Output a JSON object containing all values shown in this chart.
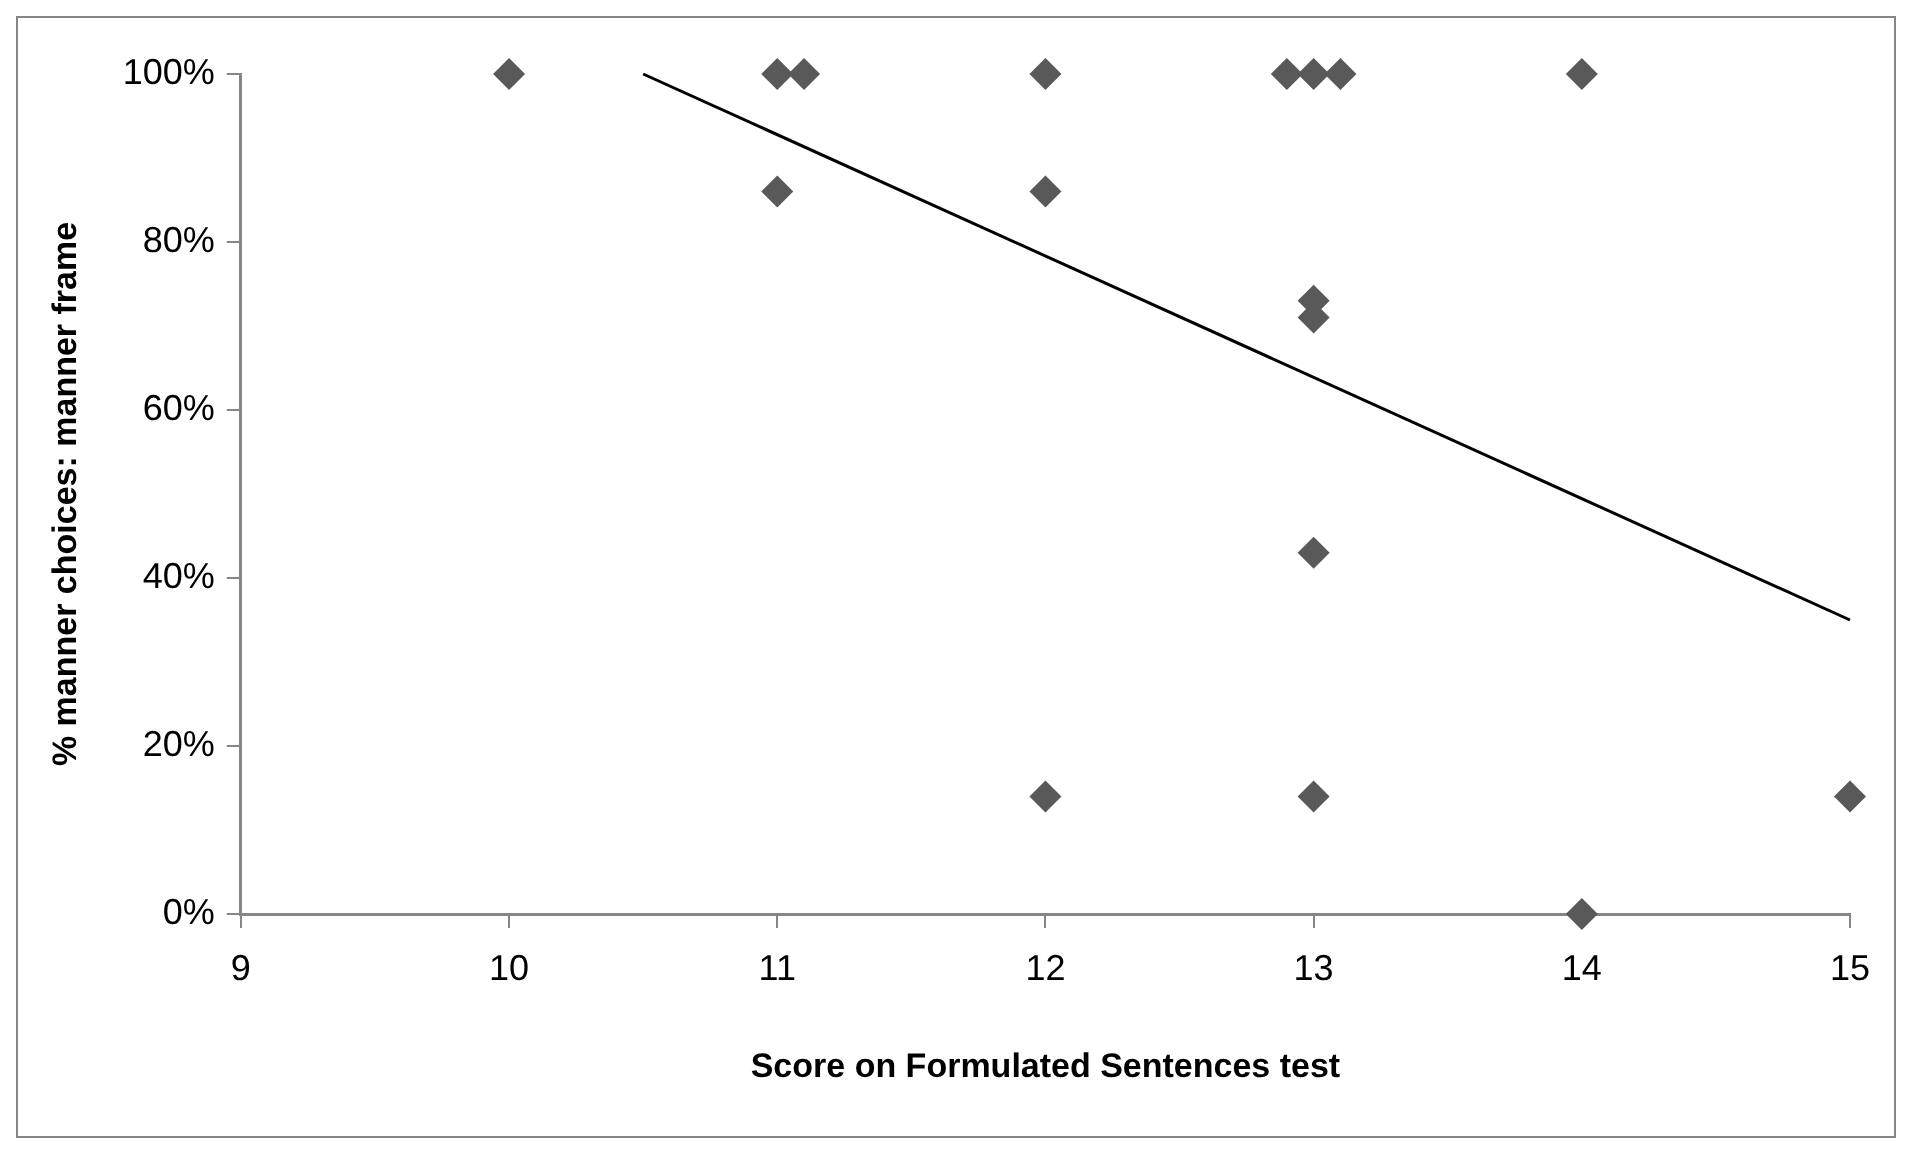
{
  "chart_data": {
    "type": "scatter",
    "xlabel": "Score on Formulated Sentences test",
    "ylabel": "% manner choices: manner frame",
    "marker": "diamond",
    "grid": false,
    "legend": false,
    "xlim": [
      9,
      15
    ],
    "xticks": [
      9,
      10,
      11,
      12,
      13,
      14,
      15
    ],
    "ylim": [
      0,
      100
    ],
    "yticks": [
      {
        "value": 0,
        "label": "0%"
      },
      {
        "value": 20,
        "label": "20%"
      },
      {
        "value": 40,
        "label": "40%"
      },
      {
        "value": 60,
        "label": "60%"
      },
      {
        "value": 80,
        "label": "80%"
      },
      {
        "value": 100,
        "label": "100%"
      }
    ],
    "series": [
      {
        "type": "scatter",
        "color": "#595959",
        "x": [
          10,
          11,
          11.1,
          12,
          12.9,
          13,
          13.1,
          14,
          11,
          12,
          13,
          13,
          13,
          12,
          13,
          15,
          14
        ],
        "values": [
          100,
          100,
          100,
          100,
          100,
          100,
          100,
          100,
          86,
          86,
          73,
          71,
          43,
          14,
          14,
          14,
          0
        ]
      },
      {
        "type": "line",
        "color": "#000000",
        "marker": "none",
        "x": [
          10.5,
          15
        ],
        "values": [
          100,
          35
        ]
      }
    ]
  }
}
